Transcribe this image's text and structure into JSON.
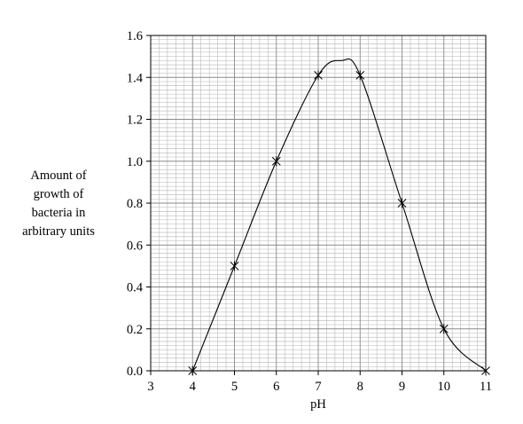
{
  "chart_data": {
    "type": "line",
    "ylabel_lines": [
      "Amount of",
      "growth of",
      "bacteria in",
      "arbitrary units"
    ],
    "xlabel": "pH",
    "xlim": [
      3,
      11
    ],
    "ylim": [
      0,
      1.6
    ],
    "x_ticks": [
      "3",
      "4",
      "5",
      "6",
      "7",
      "8",
      "9",
      "10",
      "11"
    ],
    "y_ticks": [
      "0.0",
      "0.2",
      "0.4",
      "0.6",
      "0.8",
      "1.0",
      "1.2",
      "1.4",
      "1.6"
    ],
    "grid": true,
    "marker": "asterisk",
    "series": [
      {
        "x": [
          4,
          5,
          6,
          7,
          8,
          9,
          10,
          11
        ],
        "values": [
          0.0,
          0.5,
          1.0,
          1.41,
          1.41,
          0.8,
          0.2,
          0.0
        ]
      }
    ],
    "curve_peak": {
      "x": 7.55,
      "y": 1.48
    }
  }
}
